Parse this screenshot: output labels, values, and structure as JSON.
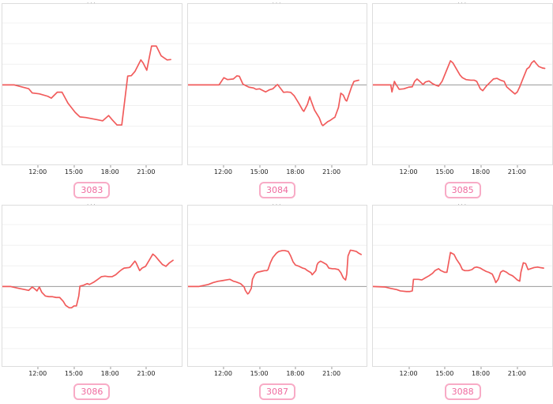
{
  "page": {
    "background": "#ffffff"
  },
  "strings": {
    "clipped_title_fragment": "···"
  },
  "colors": {
    "line": "#f15b5b",
    "zero_line": "#999999",
    "gridline": "#f0f0f0",
    "panel_border": "#dddddd",
    "pill_border": "#f8abc6",
    "pill_text": "#ef6a9e",
    "tick_text": "#222222"
  },
  "axis": {
    "x_range_hours": [
      9,
      24
    ],
    "x_tick_hours": [
      12,
      15,
      18,
      21
    ],
    "y_range_units": [
      -3.85,
      3.92
    ],
    "gridlines": [
      3,
      2,
      1,
      0,
      -1,
      -2,
      -3
    ],
    "y_tick_labels_visible": false
  },
  "chart_data": [
    {
      "type": "line",
      "title": "3083",
      "x_ticks": [
        "12:00",
        "15:00",
        "18:00",
        "21:00"
      ],
      "points": [
        [
          9,
          0
        ],
        [
          10,
          0
        ],
        [
          11.2,
          -0.18
        ],
        [
          11.5,
          -0.39
        ],
        [
          12.1,
          -0.43
        ],
        [
          12.8,
          -0.55
        ],
        [
          13.1,
          -0.64
        ],
        [
          13.6,
          -0.35
        ],
        [
          14,
          -0.35
        ],
        [
          14.5,
          -0.89
        ],
        [
          15.1,
          -1.33
        ],
        [
          15.5,
          -1.55
        ],
        [
          16,
          -1.58
        ],
        [
          17,
          -1.69
        ],
        [
          17.4,
          -1.74
        ],
        [
          17.9,
          -1.48
        ],
        [
          18.2,
          -1.69
        ],
        [
          18.6,
          -1.94
        ],
        [
          19,
          -1.94
        ],
        [
          19.5,
          0.43
        ],
        [
          19.8,
          0.45
        ],
        [
          20.1,
          0.65
        ],
        [
          20.6,
          1.21
        ],
        [
          20.8,
          1.06
        ],
        [
          21.1,
          0.71
        ],
        [
          21.5,
          1.88
        ],
        [
          21.9,
          1.88
        ],
        [
          22.3,
          1.41
        ],
        [
          22.8,
          1.21
        ],
        [
          23.1,
          1.23
        ]
      ]
    },
    {
      "type": "line",
      "title": "3084",
      "x_ticks": [
        "12:00",
        "15:00",
        "18:00",
        "21:00"
      ],
      "points": [
        [
          9,
          0
        ],
        [
          11.6,
          0
        ],
        [
          12,
          0.35
        ],
        [
          12.3,
          0.26
        ],
        [
          12.8,
          0.29
        ],
        [
          13.1,
          0.44
        ],
        [
          13.3,
          0.42
        ],
        [
          13.6,
          0.04
        ],
        [
          13.8,
          -0.02
        ],
        [
          14.1,
          -0.11
        ],
        [
          14.5,
          -0.15
        ],
        [
          14.7,
          -0.21
        ],
        [
          15,
          -0.19
        ],
        [
          15.3,
          -0.28
        ],
        [
          15.5,
          -0.34
        ],
        [
          15.8,
          -0.24
        ],
        [
          16.1,
          -0.19
        ],
        [
          16.4,
          -0.02
        ],
        [
          16.5,
          0.02
        ],
        [
          16.9,
          -0.28
        ],
        [
          17,
          -0.36
        ],
        [
          17.3,
          -0.34
        ],
        [
          17.6,
          -0.36
        ],
        [
          17.9,
          -0.53
        ],
        [
          18.3,
          -0.91
        ],
        [
          18.6,
          -1.22
        ],
        [
          18.7,
          -1.28
        ],
        [
          19,
          -0.94
        ],
        [
          19.2,
          -0.57
        ],
        [
          19.3,
          -0.75
        ],
        [
          19.6,
          -1.22
        ],
        [
          20,
          -1.6
        ],
        [
          20.2,
          -1.91
        ],
        [
          20.3,
          -1.97
        ],
        [
          20.7,
          -1.78
        ],
        [
          20.9,
          -1.72
        ],
        [
          21.2,
          -1.6
        ],
        [
          21.3,
          -1.57
        ],
        [
          21.6,
          -1.09
        ],
        [
          21.8,
          -0.4
        ],
        [
          22,
          -0.49
        ],
        [
          22.2,
          -0.74
        ],
        [
          22.3,
          -0.78
        ],
        [
          22.7,
          -0.09
        ],
        [
          22.9,
          0.17
        ],
        [
          23.3,
          0.23
        ]
      ]
    },
    {
      "type": "line",
      "title": "3085",
      "x_ticks": [
        "12:00",
        "15:00",
        "18:00",
        "21:00"
      ],
      "points": [
        [
          9,
          0
        ],
        [
          10.5,
          0
        ],
        [
          10.6,
          -0.34
        ],
        [
          10.8,
          0.17
        ],
        [
          10.9,
          0.06
        ],
        [
          11.2,
          -0.21
        ],
        [
          11.6,
          -0.19
        ],
        [
          12,
          -0.11
        ],
        [
          12.3,
          -0.09
        ],
        [
          12.5,
          0.17
        ],
        [
          12.7,
          0.29
        ],
        [
          12.9,
          0.19
        ],
        [
          13.2,
          0.02
        ],
        [
          13.4,
          0.14
        ],
        [
          13.7,
          0.19
        ],
        [
          14,
          0.06
        ],
        [
          14.3,
          -0.02
        ],
        [
          14.5,
          -0.06
        ],
        [
          14.8,
          0.17
        ],
        [
          15.1,
          0.6
        ],
        [
          15.5,
          1.17
        ],
        [
          15.7,
          1.07
        ],
        [
          16,
          0.77
        ],
        [
          16.3,
          0.48
        ],
        [
          16.5,
          0.35
        ],
        [
          16.8,
          0.26
        ],
        [
          17.2,
          0.23
        ],
        [
          17.5,
          0.23
        ],
        [
          17.7,
          0.17
        ],
        [
          18,
          -0.19
        ],
        [
          18.2,
          -0.28
        ],
        [
          18.5,
          -0.06
        ],
        [
          18.9,
          0.17
        ],
        [
          19.1,
          0.29
        ],
        [
          19.4,
          0.32
        ],
        [
          19.7,
          0.23
        ],
        [
          20,
          0.17
        ],
        [
          20.2,
          -0.09
        ],
        [
          20.5,
          -0.24
        ],
        [
          20.7,
          -0.34
        ],
        [
          20.9,
          -0.44
        ],
        [
          21.1,
          -0.34
        ],
        [
          21.3,
          -0.09
        ],
        [
          21.6,
          0.35
        ],
        [
          21.9,
          0.77
        ],
        [
          22.1,
          0.86
        ],
        [
          22.3,
          1.07
        ],
        [
          22.5,
          1.17
        ],
        [
          22.7,
          1.02
        ],
        [
          22.9,
          0.89
        ],
        [
          23.2,
          0.82
        ],
        [
          23.4,
          0.8
        ]
      ]
    },
    {
      "type": "line",
      "title": "3086",
      "x_ticks": [
        "12:00",
        "15:00",
        "18:00",
        "21:00"
      ],
      "points": [
        [
          9,
          0
        ],
        [
          9.7,
          0
        ],
        [
          10.4,
          -0.09
        ],
        [
          10.9,
          -0.15
        ],
        [
          11.2,
          -0.19
        ],
        [
          11.5,
          -0.02
        ],
        [
          11.7,
          -0.11
        ],
        [
          11.9,
          -0.21
        ],
        [
          12.1,
          -0.02
        ],
        [
          12.3,
          -0.28
        ],
        [
          12.6,
          -0.46
        ],
        [
          12.9,
          -0.49
        ],
        [
          13.2,
          -0.49
        ],
        [
          13.5,
          -0.53
        ],
        [
          13.8,
          -0.53
        ],
        [
          14.1,
          -0.72
        ],
        [
          14.3,
          -0.91
        ],
        [
          14.6,
          -1.03
        ],
        [
          14.8,
          -1.03
        ],
        [
          15,
          -0.94
        ],
        [
          15.2,
          -0.94
        ],
        [
          15.4,
          -0.46
        ],
        [
          15.5,
          0.02
        ],
        [
          15.8,
          0.06
        ],
        [
          16.1,
          0.14
        ],
        [
          16.3,
          0.1
        ],
        [
          16.7,
          0.23
        ],
        [
          17,
          0.35
        ],
        [
          17.3,
          0.48
        ],
        [
          17.6,
          0.5
        ],
        [
          17.9,
          0.48
        ],
        [
          18.2,
          0.48
        ],
        [
          18.5,
          0.57
        ],
        [
          18.8,
          0.73
        ],
        [
          19,
          0.82
        ],
        [
          19.2,
          0.89
        ],
        [
          19.6,
          0.92
        ],
        [
          19.7,
          0.94
        ],
        [
          20.1,
          1.23
        ],
        [
          20.2,
          1.15
        ],
        [
          20.5,
          0.77
        ],
        [
          20.7,
          0.89
        ],
        [
          21,
          0.98
        ],
        [
          21.3,
          1.27
        ],
        [
          21.6,
          1.57
        ],
        [
          21.8,
          1.48
        ],
        [
          22.1,
          1.27
        ],
        [
          22.4,
          1.07
        ],
        [
          22.7,
          0.98
        ],
        [
          23,
          1.15
        ],
        [
          23.3,
          1.27
        ]
      ]
    },
    {
      "type": "line",
      "title": "3087",
      "x_ticks": [
        "12:00",
        "15:00",
        "18:00",
        "21:00"
      ],
      "points": [
        [
          9,
          0
        ],
        [
          9.9,
          0
        ],
        [
          10.2,
          0.04
        ],
        [
          10.7,
          0.1
        ],
        [
          11.1,
          0.19
        ],
        [
          11.5,
          0.25
        ],
        [
          11.9,
          0.29
        ],
        [
          12.2,
          0.32
        ],
        [
          12.5,
          0.35
        ],
        [
          12.8,
          0.26
        ],
        [
          13,
          0.23
        ],
        [
          13.4,
          0.14
        ],
        [
          13.7,
          -0.02
        ],
        [
          13.8,
          -0.19
        ],
        [
          14,
          -0.36
        ],
        [
          14.1,
          -0.31
        ],
        [
          14.3,
          -0.09
        ],
        [
          14.4,
          0.35
        ],
        [
          14.6,
          0.6
        ],
        [
          14.8,
          0.69
        ],
        [
          15.1,
          0.73
        ],
        [
          15.4,
          0.77
        ],
        [
          15.6,
          0.77
        ],
        [
          15.7,
          0.82
        ],
        [
          15.9,
          1.15
        ],
        [
          16.1,
          1.4
        ],
        [
          16.4,
          1.61
        ],
        [
          16.6,
          1.7
        ],
        [
          16.9,
          1.74
        ],
        [
          17.1,
          1.74
        ],
        [
          17.4,
          1.7
        ],
        [
          17.6,
          1.48
        ],
        [
          17.8,
          1.2
        ],
        [
          18,
          1.04
        ],
        [
          18.3,
          0.98
        ],
        [
          18.6,
          0.89
        ],
        [
          18.8,
          0.86
        ],
        [
          19,
          0.77
        ],
        [
          19.3,
          0.67
        ],
        [
          19.4,
          0.57
        ],
        [
          19.7,
          0.77
        ],
        [
          19.8,
          1.04
        ],
        [
          19.9,
          1.15
        ],
        [
          20.1,
          1.23
        ],
        [
          20.3,
          1.17
        ],
        [
          20.6,
          1.07
        ],
        [
          20.8,
          0.89
        ],
        [
          21.1,
          0.86
        ],
        [
          21.3,
          0.86
        ],
        [
          21.6,
          0.82
        ],
        [
          21.8,
          0.67
        ],
        [
          22,
          0.42
        ],
        [
          22.2,
          0.32
        ],
        [
          22.3,
          0.6
        ],
        [
          22.4,
          1.48
        ],
        [
          22.6,
          1.76
        ],
        [
          22.8,
          1.74
        ],
        [
          23.1,
          1.7
        ],
        [
          23.3,
          1.61
        ],
        [
          23.5,
          1.55
        ]
      ]
    },
    {
      "type": "line",
      "title": "3088",
      "x_ticks": [
        "12:00",
        "15:00",
        "18:00",
        "21:00"
      ],
      "points": [
        [
          9,
          0
        ],
        [
          10,
          -0.02
        ],
        [
          10.5,
          -0.09
        ],
        [
          11,
          -0.15
        ],
        [
          11.3,
          -0.21
        ],
        [
          11.8,
          -0.24
        ],
        [
          12.1,
          -0.24
        ],
        [
          12.3,
          -0.21
        ],
        [
          12.4,
          0.35
        ],
        [
          12.8,
          0.35
        ],
        [
          13.1,
          0.32
        ],
        [
          13.4,
          0.42
        ],
        [
          13.7,
          0.52
        ],
        [
          14,
          0.64
        ],
        [
          14.2,
          0.77
        ],
        [
          14.5,
          0.86
        ],
        [
          14.7,
          0.77
        ],
        [
          15,
          0.69
        ],
        [
          15.2,
          0.69
        ],
        [
          15.5,
          1.65
        ],
        [
          15.8,
          1.55
        ],
        [
          16,
          1.32
        ],
        [
          16.3,
          1.07
        ],
        [
          16.5,
          0.82
        ],
        [
          16.7,
          0.77
        ],
        [
          17,
          0.77
        ],
        [
          17.3,
          0.82
        ],
        [
          17.5,
          0.92
        ],
        [
          17.7,
          0.94
        ],
        [
          18,
          0.89
        ],
        [
          18.2,
          0.82
        ],
        [
          18.5,
          0.73
        ],
        [
          18.7,
          0.69
        ],
        [
          19,
          0.6
        ],
        [
          19.2,
          0.35
        ],
        [
          19.3,
          0.19
        ],
        [
          19.5,
          0.35
        ],
        [
          19.7,
          0.69
        ],
        [
          19.9,
          0.77
        ],
        [
          20.2,
          0.69
        ],
        [
          20.4,
          0.6
        ],
        [
          20.7,
          0.52
        ],
        [
          20.9,
          0.42
        ],
        [
          21.1,
          0.32
        ],
        [
          21.3,
          0.26
        ],
        [
          21.4,
          0.69
        ],
        [
          21.6,
          1.15
        ],
        [
          21.8,
          1.11
        ],
        [
          22,
          0.82
        ],
        [
          22.2,
          0.86
        ],
        [
          22.5,
          0.92
        ],
        [
          22.8,
          0.94
        ],
        [
          23,
          0.92
        ],
        [
          23.3,
          0.89
        ]
      ]
    }
  ]
}
